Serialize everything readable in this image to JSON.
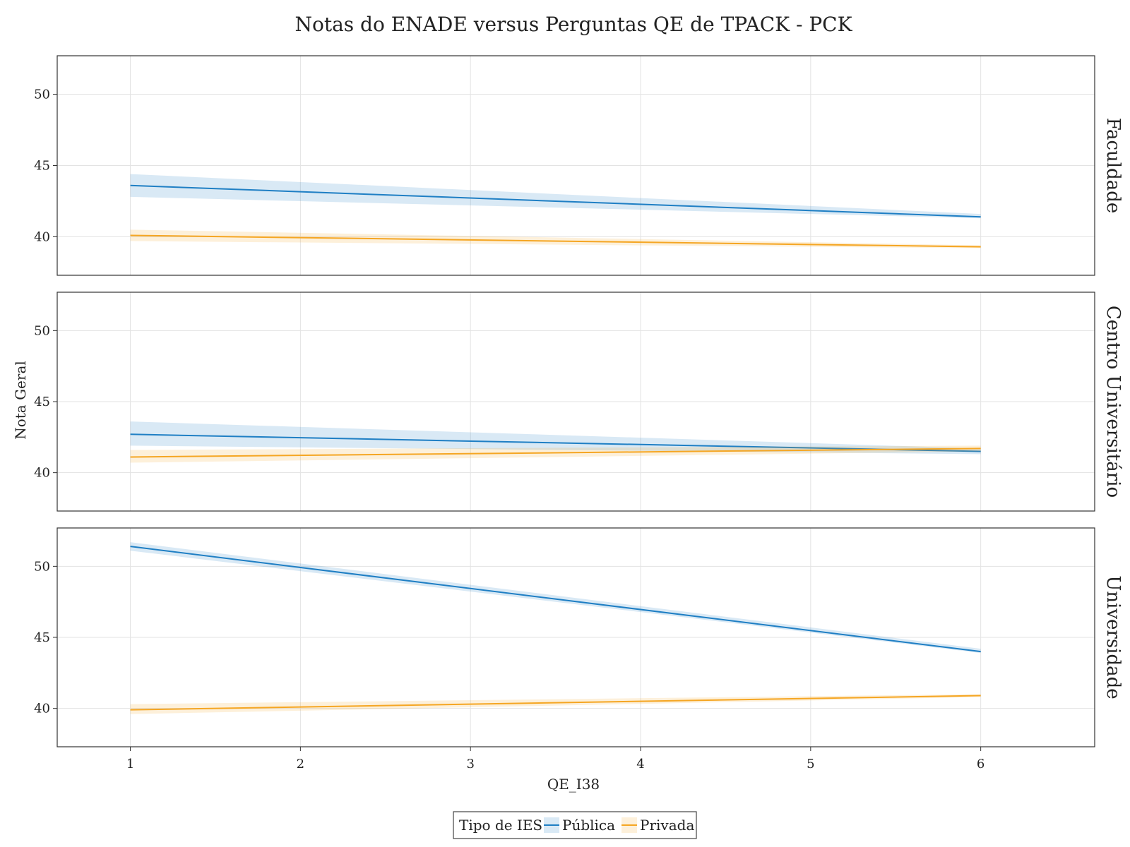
{
  "chart_data": {
    "type": "line",
    "title": "Notas do ENADE versus Perguntas QE de TPACK - PCK",
    "xlabel": "QE_I38",
    "ylabel": "Nota Geral",
    "xlim": [
      0.57,
      6.67
    ],
    "ylim": [
      37.3,
      52.7
    ],
    "x_ticks": [
      1,
      2,
      3,
      4,
      5,
      6
    ],
    "y_ticks": [
      40,
      45,
      50
    ],
    "grid": true,
    "legend": {
      "title": "Tipo de IES",
      "placement": "bottom-center",
      "entries": [
        {
          "name": "Pública",
          "color": "#1f7fc4"
        },
        {
          "name": "Privada",
          "color": "#f5a623"
        }
      ]
    },
    "facets": [
      {
        "label": "Faculdade",
        "series": [
          {
            "name": "Pública",
            "x": [
              1,
              6
            ],
            "y": [
              43.6,
              41.4
            ],
            "ci_lower": [
              42.8,
              41.3
            ],
            "ci_upper": [
              44.4,
              41.6
            ]
          },
          {
            "name": "Privada",
            "x": [
              1,
              6
            ],
            "y": [
              40.1,
              39.3
            ],
            "ci_lower": [
              39.7,
              39.2
            ],
            "ci_upper": [
              40.5,
              39.4
            ]
          }
        ]
      },
      {
        "label": "Centro Universitário",
        "series": [
          {
            "name": "Pública",
            "x": [
              1,
              6
            ],
            "y": [
              42.7,
              41.5
            ],
            "ci_lower": [
              41.9,
              41.3
            ],
            "ci_upper": [
              43.6,
              41.7
            ]
          },
          {
            "name": "Privada",
            "x": [
              1,
              6
            ],
            "y": [
              41.1,
              41.7
            ],
            "ci_lower": [
              40.7,
              41.5
            ],
            "ci_upper": [
              41.6,
              41.9
            ]
          }
        ]
      },
      {
        "label": "Universidade",
        "series": [
          {
            "name": "Pública",
            "x": [
              1,
              6
            ],
            "y": [
              51.4,
              44.0
            ],
            "ci_lower": [
              51.1,
              43.9
            ],
            "ci_upper": [
              51.7,
              44.2
            ]
          },
          {
            "name": "Privada",
            "x": [
              1,
              6
            ],
            "y": [
              39.9,
              40.9
            ],
            "ci_lower": [
              39.6,
              40.8
            ],
            "ci_upper": [
              40.3,
              41.0
            ]
          }
        ]
      }
    ]
  }
}
